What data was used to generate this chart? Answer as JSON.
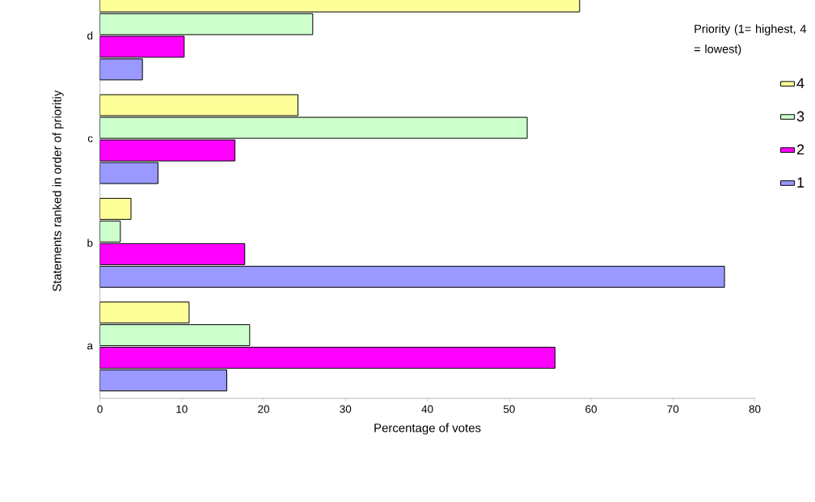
{
  "chart_data": {
    "type": "bar",
    "orientation": "horizontal",
    "xlabel": "Percentage of votes",
    "ylabel": "Statements ranked in order of prioritiy",
    "legend_title": "Priority (1= highest, 4 = lowest)",
    "legend": "right",
    "categories": [
      "d",
      "c",
      "b",
      "a"
    ],
    "series": [
      {
        "name": "1",
        "color": "#9999ff",
        "values": [
          5.2,
          7.1,
          76.3,
          15.5
        ]
      },
      {
        "name": "2",
        "color": "#ff00ff",
        "values": [
          10.3,
          16.5,
          17.7,
          55.6
        ]
      },
      {
        "name": "3",
        "color": "#ccffcc",
        "values": [
          26.0,
          52.2,
          2.5,
          18.3
        ]
      },
      {
        "name": "4",
        "color": "#ffff99",
        "values": [
          58.6,
          24.2,
          3.8,
          10.9
        ]
      }
    ],
    "xlim": [
      0,
      80
    ],
    "xticks": [
      0,
      10,
      20,
      30,
      40,
      50,
      60,
      70,
      80
    ]
  }
}
